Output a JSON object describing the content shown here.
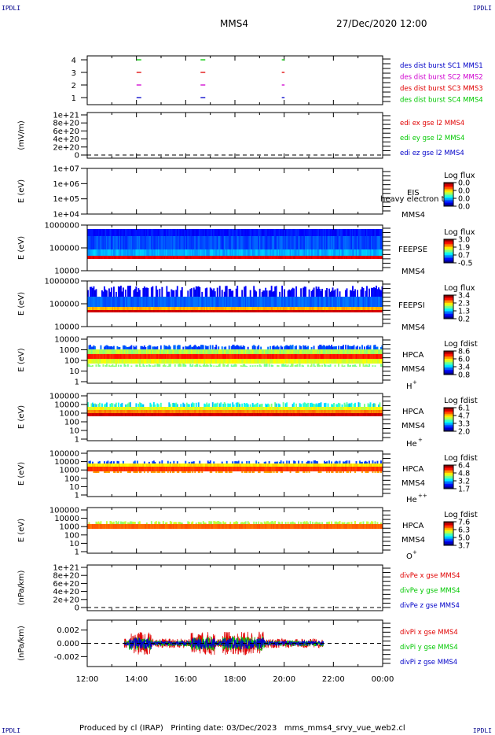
{
  "corners": {
    "tl": "IPDLI",
    "tr": "IPDLI",
    "bl": "IPDLI",
    "br": "IPDLI"
  },
  "header": {
    "spacecraft": "MMS4",
    "datetime": "27/Dec/2020 12:00"
  },
  "footer": {
    "text": "Produced by cl (IRAP)   Printing date: 03/Dec/2023   mms_mms4_srvy_vue_web2.cl"
  },
  "colors": {
    "red": "#e00000",
    "green": "#00c800",
    "blue": "#0000c8",
    "magenta": "#d000d0",
    "spectro_bg": "#1030c8"
  },
  "chart_data": {
    "type": "multi-panel time series",
    "x_ticks": [
      "12:00",
      "14:00",
      "16:00",
      "18:00",
      "20:00",
      "22:00",
      "00:00"
    ],
    "panels": [
      {
        "id": "burst",
        "type": "scatter",
        "yticks": [
          "4",
          "3",
          "2",
          "1"
        ],
        "legend": [
          {
            "text": "des dist burst SC1 MMS1",
            "color": "#0000c8"
          },
          {
            "text": "des dist burst SC2 MMS2",
            "color": "#d000d0"
          },
          {
            "text": "des dist burst SC3 MMS3",
            "color": "#e00000"
          },
          {
            "text": "des dist burst SC4 MMS4",
            "color": "#00c800"
          }
        ],
        "segments": [
          {
            "level": 4,
            "times": [
              14.1,
              16.7,
              20.0
            ]
          },
          {
            "level": 3,
            "times": [
              14.1,
              16.7,
              20.0
            ]
          },
          {
            "level": 2,
            "times": [
              14.1,
              16.7,
              20.0
            ]
          },
          {
            "level": 1,
            "times": [
              14.1,
              16.7,
              20.0
            ]
          }
        ]
      },
      {
        "id": "edi",
        "type": "line",
        "ylabel": "(mV/m)",
        "yticks": [
          "1e+21",
          "8e+20",
          "6e+20",
          "4e+20",
          "2e+20",
          "0"
        ],
        "legend": [
          {
            "text": "edi ex gse l2 MMS4",
            "color": "#e00000"
          },
          {
            "text": "edi ey gse l2 MMS4",
            "color": "#00c800"
          },
          {
            "text": "edi ez gse l2 MMS4",
            "color": "#0000c8"
          }
        ]
      },
      {
        "id": "eis",
        "type": "heatmap",
        "ylabel": "E (eV)",
        "yticks": [
          "1e+07",
          "1e+06",
          "1e+05",
          "1e+04"
        ],
        "label_top": "EIS",
        "label_mid": "heavy electron to",
        "label_bot": "MMS4",
        "cbar": {
          "title": "Log flux",
          "ticks": [
            "0.0",
            "0.0",
            "0.0",
            "0.0"
          ]
        }
      },
      {
        "id": "feepse",
        "type": "heatmap",
        "ylabel": "E (eV)",
        "yticks": [
          "1000000",
          "100000",
          "10000"
        ],
        "label_top": "FEEPSE",
        "label_bot": "MMS4",
        "cbar": {
          "title": "Log flux",
          "ticks": [
            "3.0",
            "1.9",
            "0.7",
            "-0.5"
          ]
        }
      },
      {
        "id": "feepsi",
        "type": "heatmap",
        "ylabel": "E (eV)",
        "yticks": [
          "1000000",
          "100000",
          "10000"
        ],
        "label_top": "FEEPSI",
        "label_bot": "MMS4",
        "cbar": {
          "title": "Log flux",
          "ticks": [
            "3.4",
            "2.3",
            "1.3",
            "0.2"
          ]
        }
      },
      {
        "id": "hpca_h",
        "type": "heatmap",
        "ylabel": "E (eV)",
        "yticks": [
          "10000",
          "1000",
          "100",
          "10",
          "1"
        ],
        "label_top": "HPCA",
        "label_mid": "MMS4",
        "species": "H",
        "sup": "+",
        "cbar": {
          "title": "Log fdist",
          "ticks": [
            "8.6",
            "6.0",
            "3.4",
            "0.8"
          ]
        }
      },
      {
        "id": "hpca_he",
        "type": "heatmap",
        "ylabel": "E (eV)",
        "yticks": [
          "100000",
          "10000",
          "1000",
          "100",
          "10",
          "1"
        ],
        "label_top": "HPCA",
        "label_mid": "MMS4",
        "species": "He",
        "sup": "+",
        "cbar": {
          "title": "Log fdist",
          "ticks": [
            "6.1",
            "4.7",
            "3.3",
            "2.0"
          ]
        }
      },
      {
        "id": "hpca_hepp",
        "type": "heatmap",
        "ylabel": "E (eV)",
        "yticks": [
          "100000",
          "10000",
          "1000",
          "100",
          "10",
          "1"
        ],
        "label_top": "HPCA",
        "label_mid": "MMS4",
        "species": "He",
        "sup": "++",
        "cbar": {
          "title": "Log fdist",
          "ticks": [
            "6.4",
            "4.8",
            "3.2",
            "1.7"
          ]
        }
      },
      {
        "id": "hpca_o",
        "type": "heatmap",
        "ylabel": "E (eV)",
        "yticks": [
          "100000",
          "10000",
          "1000",
          "100",
          "10",
          "1"
        ],
        "label_top": "HPCA",
        "label_mid": "MMS4",
        "species": "O",
        "sup": "+",
        "cbar": {
          "title": "Log fdist",
          "ticks": [
            "7.6",
            "6.3",
            "5.0",
            "3.7"
          ]
        }
      },
      {
        "id": "divpe",
        "type": "line",
        "ylabel": "(nPa/km)",
        "yticks": [
          "1e+21",
          "8e+20",
          "6e+20",
          "4e+20",
          "2e+20",
          "0"
        ],
        "legend": [
          {
            "text": "divPe x gse MMS4",
            "color": "#e00000"
          },
          {
            "text": "divPe y gse MMS4",
            "color": "#00c800"
          },
          {
            "text": "divPe z gse MMS4",
            "color": "#0000c8"
          }
        ]
      },
      {
        "id": "divpi",
        "type": "line",
        "ylabel": "(nPa/km)",
        "yticks": [
          "0.002",
          "0.000",
          "-0.002"
        ],
        "ylim": [
          -0.0035,
          0.0035
        ],
        "data_range_hours": [
          13.5,
          21.6
        ],
        "legend": [
          {
            "text": "divPi x gse MMS4",
            "color": "#e00000"
          },
          {
            "text": "divPi y gse MMS4",
            "color": "#00c800"
          },
          {
            "text": "divPi z gse MMS4",
            "color": "#0000c8"
          }
        ]
      }
    ]
  }
}
